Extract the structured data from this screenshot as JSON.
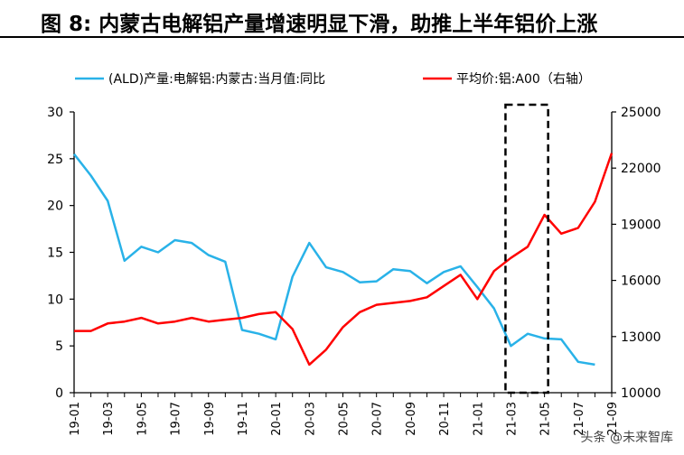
{
  "header": {
    "title": "图 8: 内蒙古电解铝产量增速明显下滑，助推上半年铝价上涨"
  },
  "watermark": "头条 @未来智库",
  "colors": {
    "production": "#29B2E8",
    "price": "#FF0000",
    "axis": "#000000",
    "highlight": "#000000"
  },
  "chart_data": {
    "type": "line",
    "legend_position": "top",
    "grid": false,
    "series": [
      {
        "name": "(ALD)产量:电解铝:内蒙古:当月值:同比",
        "axis": "left",
        "x": [
          "19-01",
          "19-02",
          "19-03",
          "19-04",
          "19-05",
          "19-06",
          "19-07",
          "19-08",
          "19-09",
          "19-10",
          "19-11",
          "19-12",
          "20-01",
          "20-02",
          "20-03",
          "20-04",
          "20-05",
          "20-06",
          "20-07",
          "20-08",
          "20-09",
          "20-10",
          "20-11",
          "20-12",
          "21-01",
          "21-02",
          "21-03",
          "21-04",
          "21-05",
          "21-06",
          "21-07",
          "21-08"
        ],
        "values": [
          25.5,
          23.2,
          20.5,
          14.1,
          15.6,
          15.0,
          16.3,
          16.0,
          14.7,
          14.0,
          6.7,
          6.3,
          5.7,
          12.4,
          16.0,
          13.4,
          12.9,
          11.8,
          11.9,
          13.2,
          13.0,
          11.7,
          12.9,
          13.5,
          11.3,
          9.0,
          5.0,
          6.3,
          5.8,
          5.7,
          3.3,
          3.0
        ]
      },
      {
        "name": "平均价:铝:A00（右轴）",
        "axis": "right",
        "x": [
          "19-01",
          "19-02",
          "19-03",
          "19-04",
          "19-05",
          "19-06",
          "19-07",
          "19-08",
          "19-09",
          "19-10",
          "19-11",
          "19-12",
          "20-01",
          "20-02",
          "20-03",
          "20-04",
          "20-05",
          "20-06",
          "20-07",
          "20-08",
          "20-09",
          "20-10",
          "20-11",
          "20-12",
          "21-01",
          "21-02",
          "21-03",
          "21-04",
          "21-05",
          "21-06",
          "21-07",
          "21-08",
          "21-09"
        ],
        "values": [
          13300,
          13300,
          13700,
          13800,
          14000,
          13700,
          13800,
          14000,
          13800,
          13900,
          14000,
          14200,
          14300,
          13400,
          11500,
          12300,
          13500,
          14300,
          14700,
          14800,
          14900,
          15100,
          15700,
          16300,
          15000,
          16500,
          17200,
          17800,
          19500,
          18500,
          18800,
          20200,
          22800
        ]
      }
    ],
    "x_ticks": [
      "19-01",
      "19-03",
      "19-05",
      "19-07",
      "19-09",
      "19-11",
      "20-01",
      "20-03",
      "20-05",
      "20-07",
      "20-09",
      "20-11",
      "21-01",
      "21-03",
      "21-05",
      "21-07",
      "21-09"
    ],
    "y_left": {
      "min": 0,
      "max": 30,
      "ticks": [
        "0",
        "5",
        "10",
        "15",
        "20",
        "25",
        "30"
      ]
    },
    "y_right": {
      "min": 10000,
      "max": 25000,
      "ticks": [
        "10000",
        "13000",
        "16000",
        "19000",
        "22000",
        "25000"
      ]
    },
    "highlight_range": [
      "21-03",
      "21-05"
    ]
  }
}
